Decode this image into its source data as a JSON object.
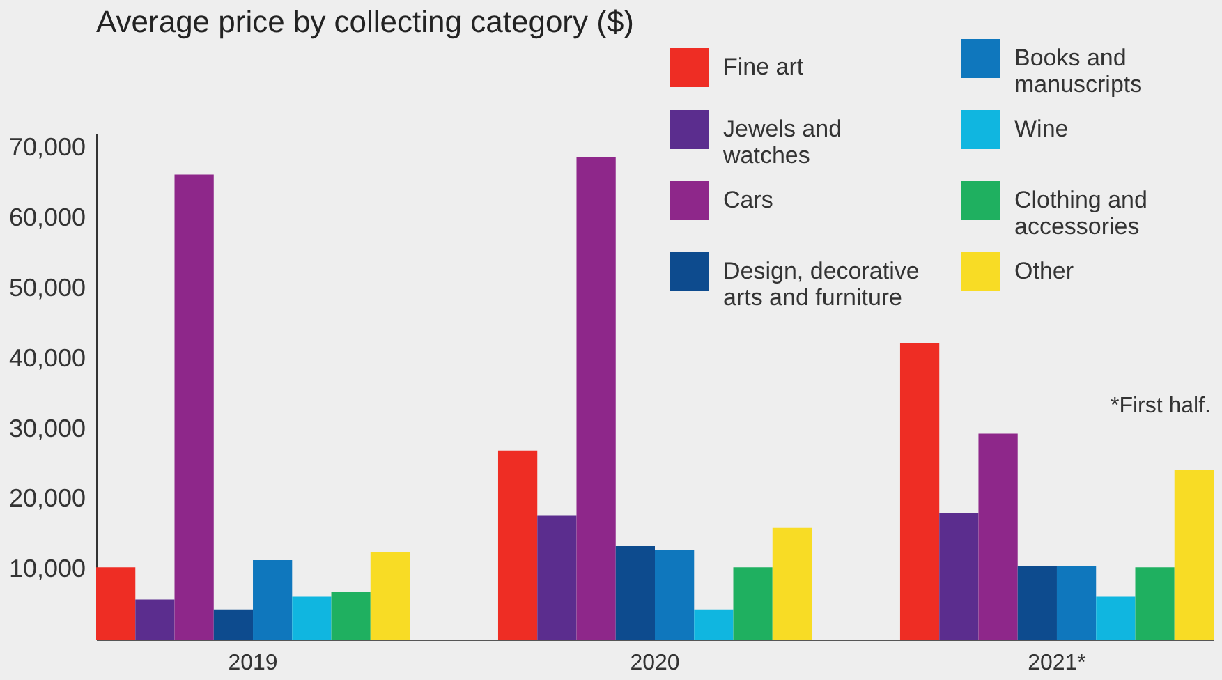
{
  "chart_data": {
    "type": "bar",
    "title": "Average price by collecting category ($)",
    "categories": [
      "2019",
      "2020",
      "2021*"
    ],
    "series": [
      {
        "name": "Fine art",
        "color": "#ee2d24",
        "values": [
          10300,
          26900,
          42200
        ]
      },
      {
        "name": "Jewels and watches",
        "color": "#5b2d8e",
        "values": [
          5700,
          17700,
          18000
        ]
      },
      {
        "name": "Cars",
        "color": "#8e278a",
        "values": [
          66200,
          68700,
          29300
        ]
      },
      {
        "name": "Design, decorative arts and furniture",
        "color": "#0d4b8e",
        "values": [
          4300,
          13400,
          10500
        ]
      },
      {
        "name": "Books and manuscripts",
        "color": "#0f77bd",
        "values": [
          11300,
          12700,
          10500
        ]
      },
      {
        "name": "Wine",
        "color": "#10b6e0",
        "values": [
          6100,
          4300,
          6100
        ]
      },
      {
        "name": "Clothing and accessories",
        "color": "#1fb060",
        "values": [
          6800,
          10300,
          10300
        ]
      },
      {
        "name": "Other",
        "color": "#f8dc25",
        "values": [
          12500,
          15900,
          24200
        ]
      }
    ],
    "ylim": [
      0,
      72000
    ],
    "yticks": [
      {
        "value": 10000,
        "label": "10,000"
      },
      {
        "value": 20000,
        "label": "20,000"
      },
      {
        "value": 30000,
        "label": "30,000"
      },
      {
        "value": 40000,
        "label": "40,000"
      },
      {
        "value": 50000,
        "label": "50,000"
      },
      {
        "value": 60000,
        "label": "60,000"
      },
      {
        "value": 70000,
        "label": "70,000"
      }
    ],
    "grid": false,
    "legend": "top right",
    "annotations": [
      "*First half."
    ]
  }
}
